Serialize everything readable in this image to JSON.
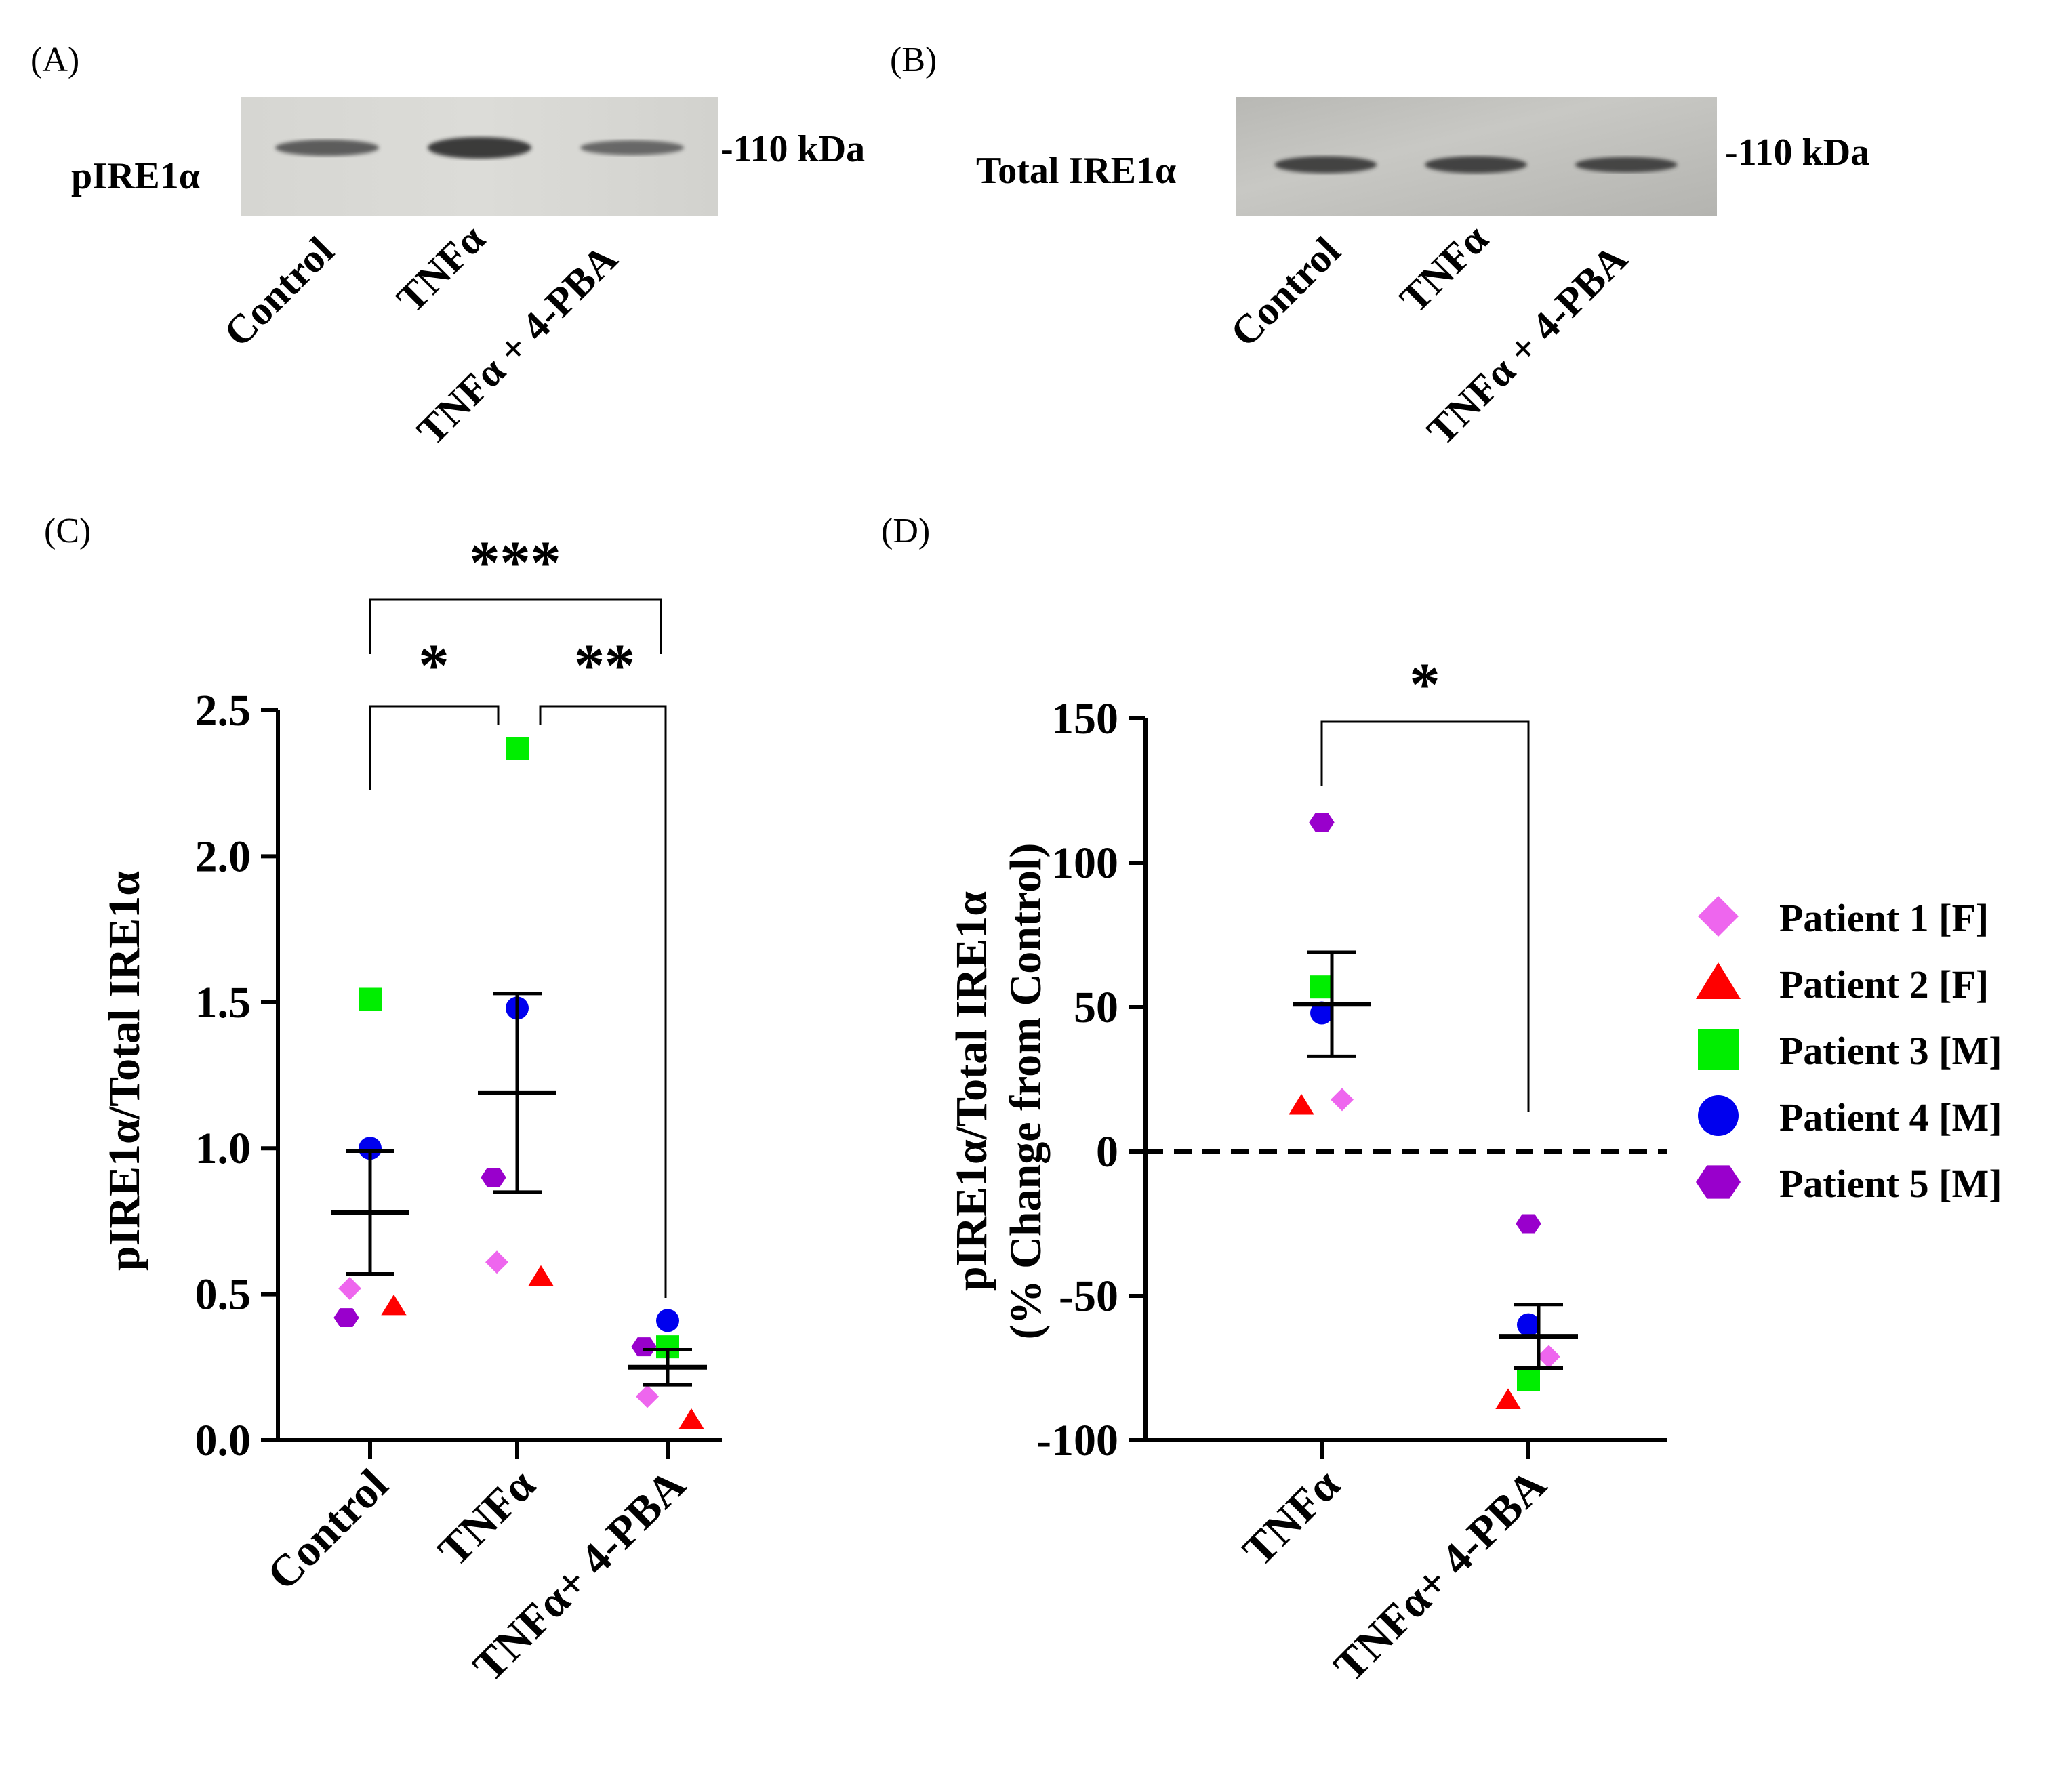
{
  "panels": {
    "a": "(A)",
    "b": "(B)",
    "c": "(C)",
    "d": "(D)"
  },
  "blot_a": {
    "label": "pIRE1α",
    "marker": "-110 kDa",
    "lanes": [
      "Control",
      "TNFα",
      "TNFα + 4-PBA"
    ],
    "band_intensity": [
      0.55,
      0.9,
      0.45
    ]
  },
  "blot_b": {
    "label": "Total IRE1α",
    "marker": "-110 kDa",
    "lanes": [
      "Control",
      "TNFα",
      "TNFα + 4-PBA"
    ],
    "band_intensity": [
      0.6,
      0.6,
      0.5
    ]
  },
  "colors": {
    "patient1": "#ee66ee",
    "patient2": "#ff0000",
    "patient3": "#00ee00",
    "patient4": "#0000ee",
    "patient5": "#9900cc"
  },
  "legend": [
    {
      "label": "Patient 1 [F]",
      "shape": "diamond",
      "color": "#ee66ee"
    },
    {
      "label": "Patient 2 [F]",
      "shape": "triangle",
      "color": "#ff0000"
    },
    {
      "label": "Patient 3 [M]",
      "shape": "square",
      "color": "#00ee00"
    },
    {
      "label": "Patient 4 [M]",
      "shape": "circle",
      "color": "#0000ee"
    },
    {
      "label": "Patient 5 [M]",
      "shape": "hexagon",
      "color": "#9900cc"
    }
  ],
  "chart_data": [
    {
      "panel": "C",
      "type": "scatter",
      "title": "",
      "categories": [
        "Control",
        "TNFα",
        "TNFα+ 4-PBA"
      ],
      "ylabel": "pIRE1α/Total IRE1α",
      "ylim": [
        0,
        2.5
      ],
      "yticks": [
        "0.0",
        "0.5",
        "1.0",
        "1.5",
        "2.0",
        "2.5"
      ],
      "ytick_values": [
        0,
        0.5,
        1.0,
        1.5,
        2.0,
        2.5
      ],
      "series": [
        {
          "name": "Patient 1 [F]",
          "shape": "diamond",
          "values": [
            0.52,
            0.61,
            0.15
          ]
        },
        {
          "name": "Patient 2 [F]",
          "shape": "triangle",
          "values": [
            0.46,
            0.56,
            0.07
          ]
        },
        {
          "name": "Patient 3 [M]",
          "shape": "square",
          "values": [
            1.51,
            2.37,
            0.32
          ]
        },
        {
          "name": "Patient 4 [M]",
          "shape": "circle",
          "values": [
            1.0,
            1.48,
            0.41
          ]
        },
        {
          "name": "Patient 5 [M]",
          "shape": "hexagon",
          "values": [
            0.42,
            0.9,
            0.32
          ]
        }
      ],
      "mean": [
        0.78,
        1.19,
        0.25
      ],
      "sem": [
        0.21,
        0.34,
        0.06
      ],
      "significance": [
        {
          "pair": [
            0,
            1
          ],
          "label": "*"
        },
        {
          "pair": [
            1,
            2
          ],
          "label": "**"
        },
        {
          "pair": [
            0,
            2
          ],
          "label": "***"
        }
      ]
    },
    {
      "panel": "D",
      "type": "scatter",
      "title": "",
      "categories": [
        "TNFα",
        "TNFα+ 4-PBA"
      ],
      "ylabel": "pIRE1α/Total IRE1α",
      "ylabel2": "(% Change from Control)",
      "ylim": [
        -100,
        150
      ],
      "yticks": [
        "-100",
        "-50",
        "0",
        "50",
        "100",
        "150"
      ],
      "ytick_values": [
        -100,
        -50,
        0,
        50,
        100,
        150
      ],
      "reference_line": 0,
      "series": [
        {
          "name": "Patient 1 [F]",
          "shape": "diamond",
          "values": [
            18,
            -71
          ]
        },
        {
          "name": "Patient 2 [F]",
          "shape": "triangle",
          "values": [
            16,
            -86
          ]
        },
        {
          "name": "Patient 3 [M]",
          "shape": "square",
          "values": [
            57,
            -79
          ]
        },
        {
          "name": "Patient 4 [M]",
          "shape": "circle",
          "values": [
            48,
            -60
          ]
        },
        {
          "name": "Patient 5 [M]",
          "shape": "hexagon",
          "values": [
            114,
            -25
          ]
        }
      ],
      "mean": [
        51,
        -64
      ],
      "sem": [
        18,
        11
      ],
      "significance": [
        {
          "pair": [
            0,
            1
          ],
          "label": "*"
        }
      ]
    }
  ]
}
